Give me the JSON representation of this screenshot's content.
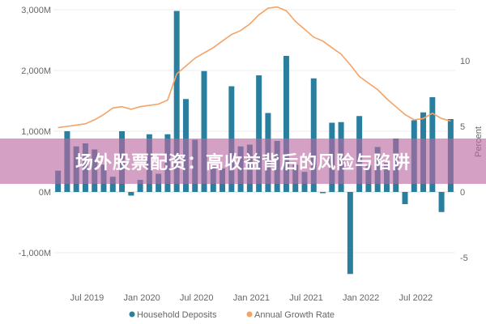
{
  "banner": {
    "text": "场外股票配资：高收益背后的风险与陷阱"
  },
  "chart_data": {
    "type": "bar+line",
    "x_tick_labels": [
      "Jul 2019",
      "Jan 2020",
      "Jul 2020",
      "Jan 2021",
      "Jul 2021",
      "Jan 2022",
      "Jul 2022"
    ],
    "y_left": {
      "tick_labels": [
        "3,000M",
        "2,000M",
        "1,000M",
        "0M",
        "-1,000M"
      ],
      "ticks": [
        3000,
        2000,
        1000,
        0,
        -1000
      ],
      "range": [
        -1500,
        3000
      ]
    },
    "y_right": {
      "label": "Percent",
      "tick_labels": [
        "10",
        "5",
        "0",
        "-5"
      ],
      "ticks": [
        10,
        5,
        0,
        -5
      ],
      "range": [
        -7.3,
        14.5
      ]
    },
    "legend": {
      "position": "bottom",
      "items": [
        {
          "name": "Household Deposits",
          "color": "#2b7f9e",
          "marker": "circle"
        },
        {
          "name": "Annual Growth Rate",
          "color": "#f5a366",
          "marker": "circle"
        }
      ]
    },
    "series": [
      {
        "name": "Household Deposits",
        "kind": "bar",
        "color": "#2b7f9e",
        "values": [
          350,
          1000,
          750,
          800,
          700,
          450,
          250,
          1000,
          -60,
          200,
          950,
          300,
          950,
          2980,
          1530,
          860,
          1990,
          460,
          390,
          1740,
          750,
          780,
          1920,
          1300,
          840,
          2240,
          450,
          330,
          1870,
          -20,
          1140,
          1150,
          -1350,
          1250,
          440,
          740,
          480,
          880,
          -200,
          1180,
          1310,
          1560,
          -330,
          1200
        ]
      },
      {
        "name": "Annual Growth Rate",
        "kind": "line",
        "color": "#f5a366",
        "values": [
          4.9,
          5.0,
          5.1,
          5.2,
          5.5,
          5.9,
          6.4,
          6.5,
          6.3,
          6.5,
          6.6,
          6.7,
          7.0,
          9.0,
          9.6,
          10.2,
          10.6,
          11.0,
          11.5,
          12.0,
          12.3,
          12.8,
          13.5,
          14.0,
          14.1,
          13.8,
          13.0,
          12.4,
          11.8,
          11.5,
          11.0,
          10.5,
          9.7,
          8.8,
          8.3,
          7.8,
          7.1,
          6.5,
          5.9,
          5.5,
          5.6,
          6.0,
          5.6,
          5.4
        ]
      }
    ]
  }
}
